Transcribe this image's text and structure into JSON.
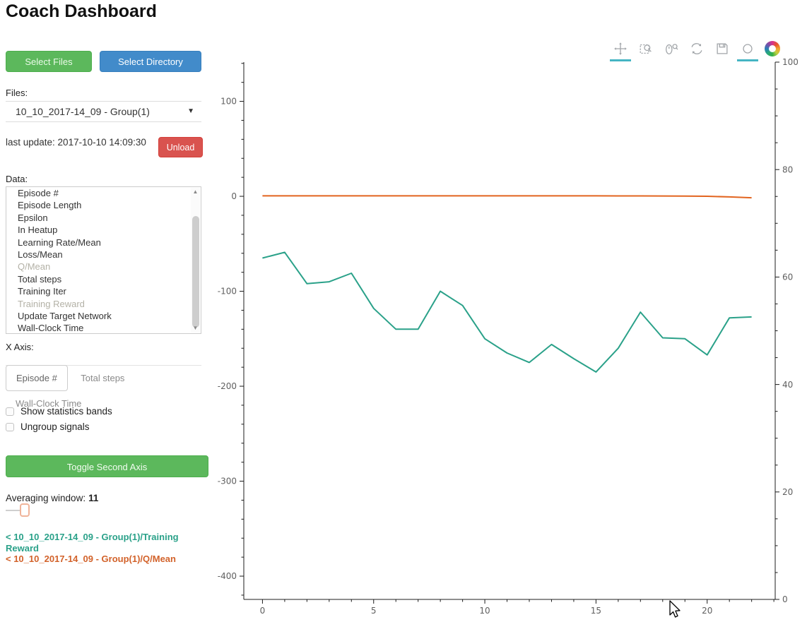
{
  "title": "Coach Dashboard",
  "colors": {
    "green_button": "#5cb85c",
    "blue_button": "#428bca",
    "red_button": "#d9534f",
    "active_tool_underline": "#45b5c3",
    "series_teal": "#2aa189",
    "series_orange": "#e2641f"
  },
  "buttons": {
    "select_files": "Select Files",
    "select_directory": "Select Directory",
    "unload": "Unload",
    "toggle_second_axis": "Toggle Second Axis"
  },
  "files": {
    "label": "Files:",
    "selected": "10_10_2017-14_09 - Group(1)",
    "dropdown_arrow": "▼"
  },
  "last_update": "last update: 2017-10-10 14:09:30",
  "data_panel": {
    "label": "Data:",
    "items": [
      {
        "label": "Episode #",
        "dimmed": false
      },
      {
        "label": "Episode Length",
        "dimmed": false
      },
      {
        "label": "Epsilon",
        "dimmed": false
      },
      {
        "label": "In Heatup",
        "dimmed": false
      },
      {
        "label": "Learning Rate/Mean",
        "dimmed": false
      },
      {
        "label": "Loss/Mean",
        "dimmed": false
      },
      {
        "label": "Q/Mean",
        "dimmed": true
      },
      {
        "label": "Total steps",
        "dimmed": false
      },
      {
        "label": "Training Iter",
        "dimmed": false
      },
      {
        "label": "Training Reward",
        "dimmed": true
      },
      {
        "label": "Update Target Network",
        "dimmed": false
      },
      {
        "label": "Wall-Clock Time",
        "dimmed": false
      }
    ],
    "scroll_up_arrow": "▲",
    "scroll_down_arrow": "▼"
  },
  "x_axis_selector": {
    "label": "X Axis:",
    "tabs": [
      {
        "label": "Episode #",
        "active": true
      },
      {
        "label": "Total steps",
        "active": false
      },
      {
        "label": "Wall-Clock Time",
        "active": false
      }
    ]
  },
  "checkboxes": [
    {
      "label": "Show statistics bands",
      "checked": false
    },
    {
      "label": "Ungroup signals",
      "checked": false
    }
  ],
  "averaging": {
    "label": "Averaging window:",
    "value": "11"
  },
  "legend": [
    {
      "text": "< 10_10_2017-14_09 - Group(1)/Training Reward",
      "color": "#2aa189"
    },
    {
      "text": "< 10_10_2017-14_09 - Group(1)/Q/Mean",
      "color": "#d2622a"
    }
  ],
  "toolbar": {
    "tools": [
      "pan",
      "box-zoom",
      "wheel-zoom",
      "reset",
      "save",
      "hover",
      "bokeh-logo"
    ],
    "active_tools": [
      "pan",
      "hover"
    ]
  },
  "chart_data": {
    "type": "line",
    "title": "",
    "xlabel": "",
    "ylabel": "",
    "grid": false,
    "x": [
      0,
      1,
      2,
      3,
      4,
      5,
      6,
      7,
      8,
      9,
      10,
      11,
      12,
      13,
      14,
      15,
      16,
      17,
      18,
      19,
      20,
      21,
      22
    ],
    "series": [
      {
        "name": "10_10_2017-14_09 - Group(1)/Training Reward",
        "color": "#2aa189",
        "axis": "left",
        "values": [
          -65,
          -59,
          -92,
          -90,
          -81,
          -118,
          -140,
          -140,
          -100,
          -115,
          -150,
          -165,
          -175,
          -156,
          -171,
          -185,
          -160,
          -122,
          -149,
          -150,
          -167,
          -128,
          -127
        ]
      },
      {
        "name": "10_10_2017-14_09 - Group(1)/Q/Mean",
        "color": "#e2641f",
        "axis": "left",
        "values": [
          0.5,
          0.5,
          0.5,
          0.5,
          0.5,
          0.5,
          0.5,
          0.5,
          0.5,
          0.5,
          0.5,
          0.5,
          0.5,
          0.5,
          0.5,
          0.5,
          0.4,
          0.4,
          0.3,
          0.2,
          0,
          -0.6,
          -1.5
        ]
      }
    ],
    "left_axis": {
      "ticks": [
        100,
        0,
        -100,
        -200,
        -300,
        -400
      ],
      "minor_step": 20,
      "range": [
        -424.5,
        141.3
      ]
    },
    "right_axis": {
      "ticks": [
        0,
        20,
        40,
        60,
        80,
        100
      ],
      "minor_step": 5,
      "range": [
        0,
        100
      ]
    },
    "x_axis": {
      "ticks": [
        0,
        5,
        10,
        15,
        20
      ],
      "minor_step": 1,
      "range": [
        -0.84,
        23.06
      ]
    },
    "legend_position": "left-panel"
  }
}
